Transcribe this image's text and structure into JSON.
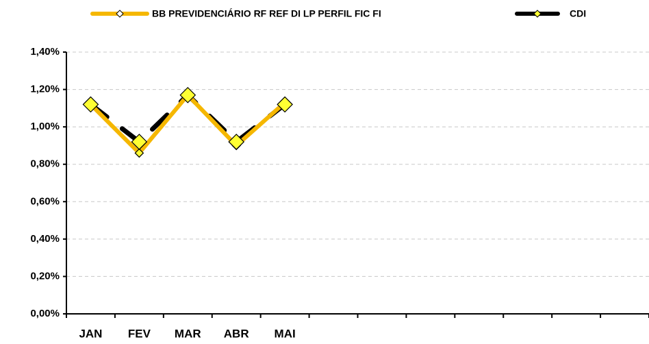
{
  "chart_data": {
    "type": "line",
    "categories": [
      "JAN",
      "FEV",
      "MAR",
      "ABR",
      "MAI",
      null,
      null,
      null,
      null,
      null,
      null,
      null
    ],
    "series": [
      {
        "name": "BB PREVIDENCIÁRIO RF REF DI LP PERFIL FIC FI",
        "color": "#f5b700",
        "values": [
          1.12,
          0.86,
          1.17,
          0.9,
          1.13,
          null,
          null,
          null,
          null,
          null,
          null,
          null
        ]
      },
      {
        "name": "CDI",
        "color": "#000000",
        "marker_color": "#ffff33",
        "values": [
          1.12,
          0.92,
          1.17,
          0.92,
          1.12,
          null,
          null,
          null,
          null,
          null,
          null,
          null
        ]
      }
    ],
    "ylim": [
      0,
      1.4
    ],
    "yticks": [
      {
        "value": 0,
        "label": "0,00%"
      },
      {
        "value": 0.2,
        "label": "0,20%"
      },
      {
        "value": 0.4,
        "label": "0,40%"
      },
      {
        "value": 0.6,
        "label": "0,60%"
      },
      {
        "value": 0.8,
        "label": "0,80%"
      },
      {
        "value": 1.0,
        "label": "1,00%"
      },
      {
        "value": 1.2,
        "label": "1,20%"
      },
      {
        "value": 1.4,
        "label": "1,40%"
      }
    ],
    "grid": true,
    "legend": "top"
  }
}
